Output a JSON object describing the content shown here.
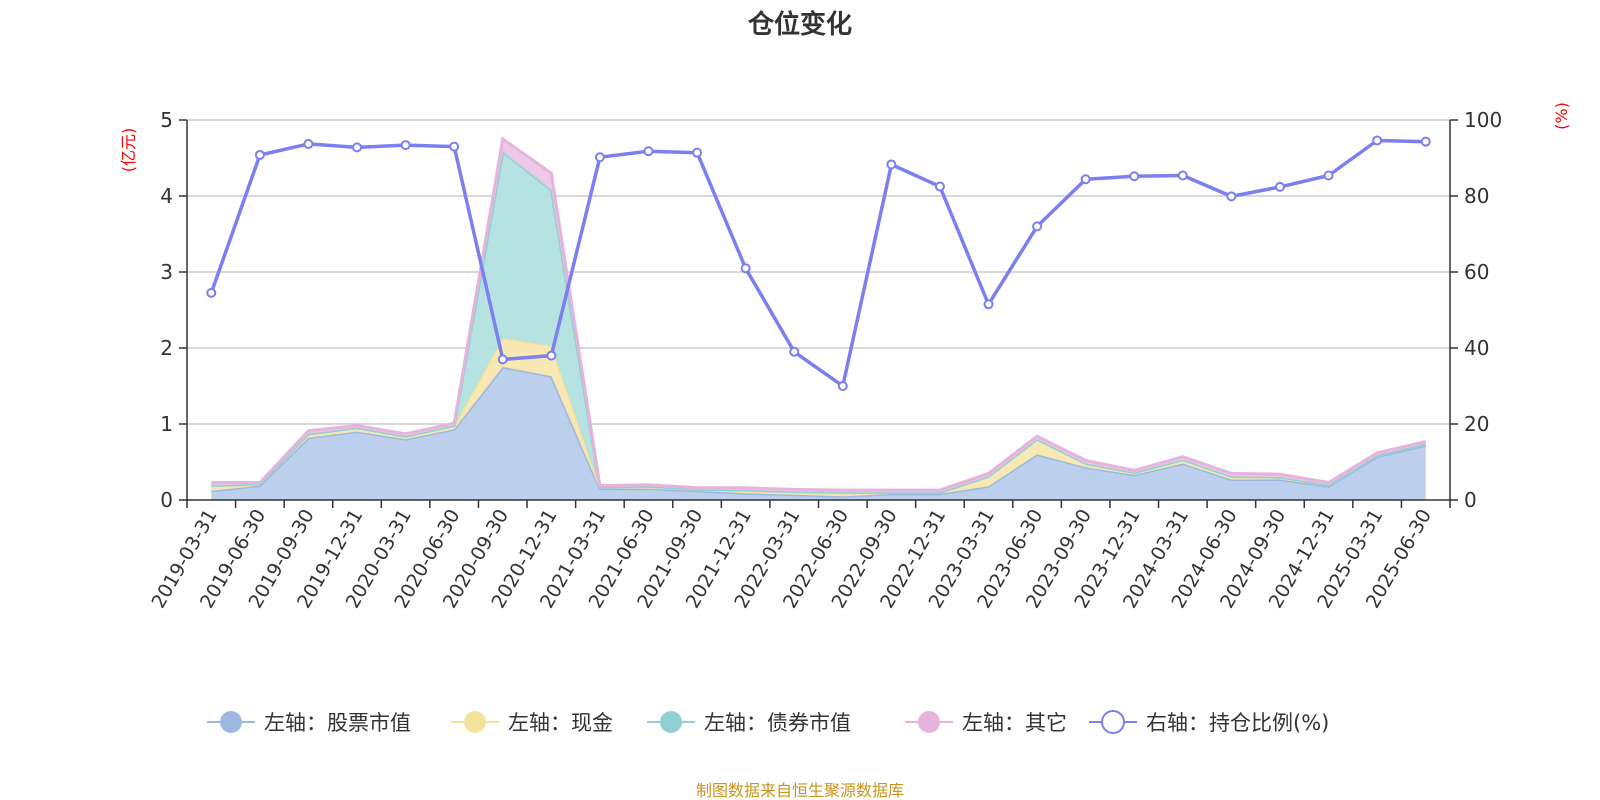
{
  "chart_data": {
    "type": "area",
    "title": "仓位变化",
    "left_axis_unit": "(亿元)",
    "right_axis_unit": "(%)",
    "left_ylim": [
      0,
      5
    ],
    "left_ticks": [
      0,
      1,
      2,
      3,
      4,
      5
    ],
    "right_ylim": [
      0,
      100
    ],
    "right_ticks": [
      0,
      20,
      40,
      60,
      80,
      100
    ],
    "grid": true,
    "legend_position": "bottom",
    "categories": [
      "2019-03-31",
      "2019-06-30",
      "2019-09-30",
      "2019-12-31",
      "2020-03-31",
      "2020-06-30",
      "2020-09-30",
      "2020-12-31",
      "2021-03-31",
      "2021-06-30",
      "2021-09-30",
      "2021-12-31",
      "2022-03-31",
      "2022-06-30",
      "2022-09-30",
      "2022-12-31",
      "2023-03-31",
      "2023-06-30",
      "2023-09-30",
      "2023-12-31",
      "2024-03-31",
      "2024-06-30",
      "2024-09-30",
      "2024-12-31",
      "2025-03-31",
      "2025-06-30"
    ],
    "series": [
      {
        "name": "左轴：股票市值",
        "axis": "left",
        "kind": "stacked-area",
        "color": "#9db8e0",
        "fill": "#b8cceb",
        "values": [
          0.12,
          0.19,
          0.82,
          0.9,
          0.8,
          0.93,
          1.75,
          1.63,
          0.15,
          0.15,
          0.12,
          0.09,
          0.07,
          0.05,
          0.08,
          0.08,
          0.18,
          0.6,
          0.43,
          0.33,
          0.48,
          0.27,
          0.27,
          0.18,
          0.57,
          0.72
        ]
      },
      {
        "name": "左轴：现金",
        "axis": "left",
        "kind": "stacked-area",
        "color": "#f5e29a",
        "fill": "#f8e8b0",
        "values": [
          0.07,
          0.02,
          0.05,
          0.05,
          0.04,
          0.05,
          0.38,
          0.4,
          0.02,
          0.03,
          0.02,
          0.04,
          0.04,
          0.05,
          0.02,
          0.02,
          0.13,
          0.2,
          0.05,
          0.03,
          0.05,
          0.04,
          0.03,
          0.02,
          0.02,
          0.02
        ]
      },
      {
        "name": "左轴：债券市值",
        "axis": "left",
        "kind": "stacked-area",
        "color": "#8fd1d3",
        "fill": "#b2e0e0",
        "values": [
          0,
          0,
          0,
          0,
          0,
          0,
          2.45,
          2.05,
          0,
          0,
          0,
          0,
          0,
          0,
          0,
          0,
          0,
          0,
          0,
          0,
          0,
          0,
          0,
          0,
          0,
          0
        ]
      },
      {
        "name": "左轴：其它",
        "axis": "left",
        "kind": "stacked-area",
        "color": "#e6b3dc",
        "fill": "#ecc6e6",
        "values": [
          0.04,
          0.02,
          0.04,
          0.03,
          0.03,
          0.03,
          0.17,
          0.22,
          0.02,
          0.02,
          0.02,
          0.03,
          0.03,
          0.03,
          0.03,
          0.03,
          0.04,
          0.04,
          0.04,
          0.03,
          0.04,
          0.04,
          0.04,
          0.03,
          0.03,
          0.03
        ]
      },
      {
        "name": "右轴：持仓比例(%)",
        "axis": "right",
        "kind": "line",
        "color": "#7b7ff0",
        "values": [
          54.5,
          90.8,
          93.7,
          92.8,
          93.4,
          93.0,
          37.0,
          38.0,
          90.2,
          91.8,
          91.4,
          61.0,
          39.0,
          30.0,
          88.3,
          82.5,
          51.5,
          72.0,
          84.4,
          85.2,
          85.4,
          79.9,
          82.4,
          85.4,
          94.6,
          94.3
        ]
      }
    ]
  },
  "footer": "制图数据来自恒生聚源数据库"
}
